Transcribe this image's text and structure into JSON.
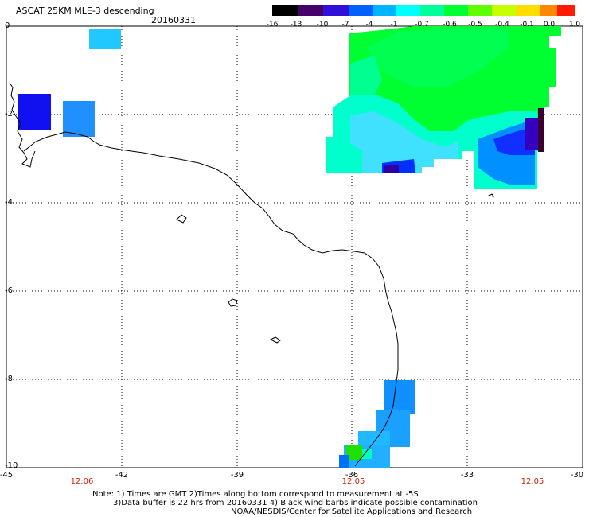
{
  "header": {
    "title": "ASCAT 25KM MLE-3 descending",
    "date": "20160331"
  },
  "colorbar": {
    "labels": [
      "-16",
      "-13",
      "-10",
      "-7",
      "-4",
      "-1",
      "-0.7",
      "-0.6",
      "-0.5",
      "-0.4",
      "-0.1",
      "0.0",
      "1.0"
    ],
    "colors": [
      "#000000",
      "#400060",
      "#5000c0",
      "#0000ff",
      "#0070ff",
      "#00c8ff",
      "#00ffee",
      "#00ff80",
      "#00ff00",
      "#a0ff00",
      "#ffff00",
      "#ff9900",
      "#ff0000"
    ]
  },
  "map": {
    "lat_labels": [
      "0",
      "-2",
      "-4",
      "-6",
      "-8",
      "-10"
    ],
    "lon_labels": [
      "-45",
      "-42",
      "-39",
      "-36",
      "-33",
      "-30"
    ],
    "times": [
      "12:06",
      "12:05",
      "12:05"
    ]
  },
  "footer": {
    "line1": "Note: 1) Times are GMT 2)Times along bottom correspond to measurement at -5S",
    "line2": "3)Data buffer is 22 hrs from 20160331 4) Black wind barbs indicate possible contamination",
    "line3": "NOAA/NESDIS/Center for Satellite Applications and Research"
  }
}
